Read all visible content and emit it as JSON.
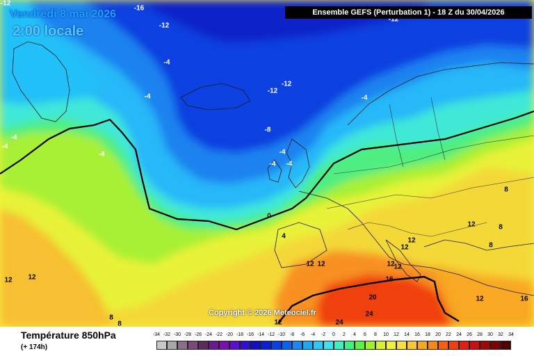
{
  "header": {
    "date": "Vendredi 8 mai 2026",
    "local_time": "2:00 locale",
    "run_info": "Ensemble GEFS  (Perturbation 1)  -  18 Z du 30/04/2026"
  },
  "copyright": "Copyright © 2026 Meteociel.fr",
  "footer": {
    "parameter": "Température 850hPa",
    "lead_time": "(+ 174h)"
  },
  "legend": {
    "ticks": [
      "-34",
      "-32",
      "-30",
      "-28",
      "-26",
      "-24",
      "-22",
      "-20",
      "-18",
      "-16",
      "-14",
      "-12",
      "-10",
      "-8",
      "-6",
      "-4",
      "-2",
      "0",
      "2",
      "4",
      "6",
      "8",
      "10",
      "12",
      "14",
      "16",
      "18",
      "20",
      "22",
      "24",
      "26",
      "28",
      "30",
      "32",
      "34"
    ],
    "colors": [
      "#c8c8c8",
      "#a8a8a8",
      "#8c6e8c",
      "#7a4a7a",
      "#5e2a5e",
      "#6a1a8a",
      "#7a10b0",
      "#5a10c8",
      "#3010d0",
      "#1010c0",
      "#0820d8",
      "#0a40e8",
      "#1060f0",
      "#1888f8",
      "#20a8f8",
      "#30c8f8",
      "#40e0f0",
      "#40f0c0",
      "#40f080",
      "#60f040",
      "#a0f030",
      "#d8f030",
      "#f0f040",
      "#f8e040",
      "#f8c830",
      "#f8a820",
      "#f88818",
      "#f86010",
      "#f04010",
      "#e02010",
      "#c81010",
      "#a00808",
      "#780404",
      "#500000"
    ]
  },
  "contour_labels": [
    {
      "text": "-16"
    },
    {
      "text": "-12"
    },
    {
      "text": "-12"
    },
    {
      "text": "-4"
    },
    {
      "text": "-4"
    },
    {
      "text": "-4"
    },
    {
      "text": "-12"
    },
    {
      "text": "-12"
    },
    {
      "text": "-8"
    },
    {
      "text": "-4"
    },
    {
      "text": "-4"
    },
    {
      "text": "-4"
    },
    {
      "text": "-4"
    },
    {
      "text": "-4"
    },
    {
      "text": "0"
    },
    {
      "text": "4"
    },
    {
      "text": "-4"
    },
    {
      "text": "12"
    },
    {
      "text": "12"
    },
    {
      "text": "12"
    },
    {
      "text": "12"
    },
    {
      "text": "8"
    },
    {
      "text": "12"
    },
    {
      "text": "8"
    },
    {
      "text": "12"
    },
    {
      "text": "12"
    },
    {
      "text": "16"
    },
    {
      "text": "12"
    },
    {
      "text": "12"
    },
    {
      "text": "20"
    },
    {
      "text": "24"
    },
    {
      "text": "24"
    },
    {
      "text": "16"
    },
    {
      "text": "8"
    },
    {
      "text": "8"
    },
    {
      "text": "12"
    },
    {
      "text": "8"
    },
    {
      "text": "-12"
    },
    {
      "text": "12"
    }
  ]
}
